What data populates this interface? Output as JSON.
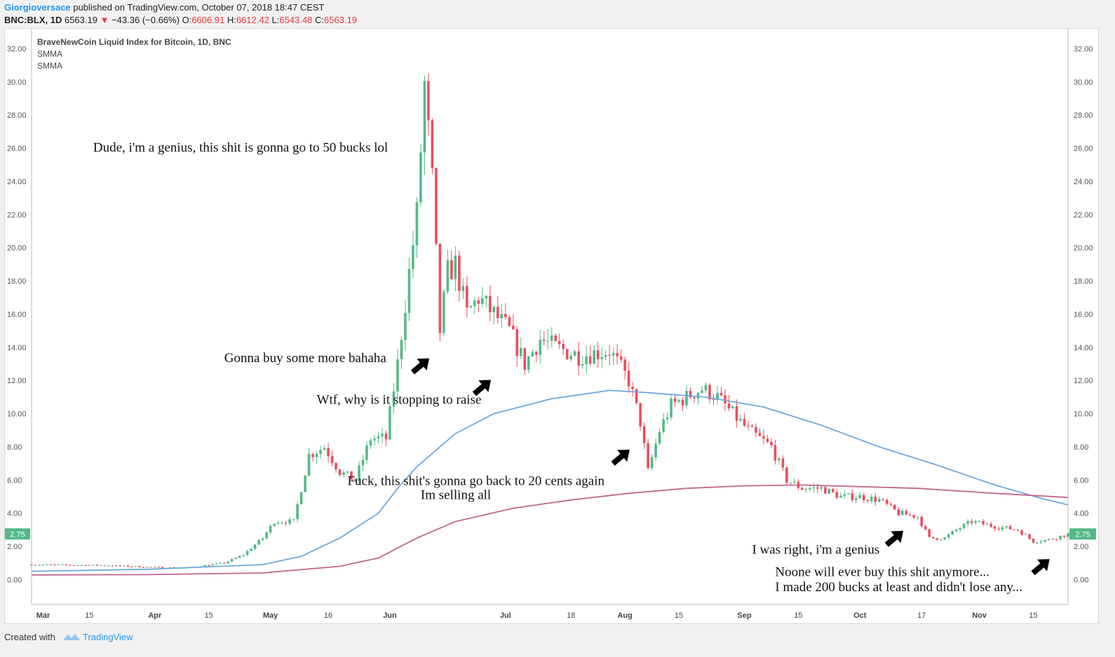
{
  "header": {
    "author": "Giorgioversace",
    "published": "published on TradingView.com, October 07, 2018 18:47 CEST",
    "symbol": "BNC:BLX, 1D",
    "last": "6563.19",
    "change": "−43.36 (−0.66%)",
    "o_label": "O:",
    "o": "6606.91",
    "h_label": "H:",
    "h": "6612.42",
    "l_label": "L:",
    "l": "6543.48",
    "c_label": "C:",
    "c": "6563.19"
  },
  "footer": {
    "created": "Created with",
    "brand": "TradingView"
  },
  "colors": {
    "up": "#53b987",
    "down": "#eb4d5c",
    "smma_fast": "#6fa8dc",
    "smma_slow": "#c2668e",
    "grid_text": "#555555"
  },
  "chart_data": {
    "type": "line",
    "legend": [
      "BraveNewCoin Liquid Index for Bitcoin, 1D, BNC",
      "SMMA",
      "SMMA"
    ],
    "ylim": [
      -1.5,
      33.2
    ],
    "yticks": [
      "32.00",
      "30.00",
      "28.00",
      "26.00",
      "24.00",
      "22.00",
      "20.00",
      "18.00",
      "16.00",
      "14.00",
      "12.00",
      "10.00",
      "8.00",
      "6.00",
      "4.00",
      "2.00",
      "0.00"
    ],
    "xticks": [
      {
        "label": "Mar",
        "day": 3
      },
      {
        "label": "15",
        "day": 15
      },
      {
        "label": "Apr",
        "day": 32
      },
      {
        "label": "15",
        "day": 46
      },
      {
        "label": "May",
        "day": 62
      },
      {
        "label": "16",
        "day": 77
      },
      {
        "label": "Jun",
        "day": 93
      },
      {
        "label": "Jul",
        "day": 123
      },
      {
        "label": "18",
        "day": 140
      },
      {
        "label": "Aug",
        "day": 154
      },
      {
        "label": "15",
        "day": 168
      },
      {
        "label": "Sep",
        "day": 185
      },
      {
        "label": "15",
        "day": 199
      },
      {
        "label": "Oct",
        "day": 215
      },
      {
        "label": "17",
        "day": 231
      },
      {
        "label": "Nov",
        "day": 246
      },
      {
        "label": "15",
        "day": 260
      }
    ],
    "day_range": [
      0,
      269
    ],
    "price_badge": "2.75",
    "price_key": [
      [
        0,
        0.9
      ],
      [
        20,
        0.85
      ],
      [
        30,
        0.75
      ],
      [
        40,
        0.7
      ],
      [
        50,
        1.0
      ],
      [
        55,
        1.5
      ],
      [
        60,
        2.5
      ],
      [
        63,
        3.5
      ],
      [
        68,
        3.5
      ],
      [
        72,
        7.5
      ],
      [
        76,
        8.0
      ],
      [
        80,
        6.5
      ],
      [
        84,
        6.0
      ],
      [
        88,
        8.5
      ],
      [
        92,
        8.5
      ],
      [
        95,
        13.0
      ],
      [
        98,
        18.5
      ],
      [
        100,
        22.0
      ],
      [
        102,
        29.8
      ],
      [
        104,
        24.0
      ],
      [
        106,
        15.0
      ],
      [
        108,
        18.5
      ],
      [
        110,
        19.0
      ],
      [
        113,
        16.0
      ],
      [
        116,
        17.0
      ],
      [
        120,
        16.0
      ],
      [
        124,
        15.0
      ],
      [
        128,
        13.0
      ],
      [
        132,
        14.5
      ],
      [
        136,
        14.0
      ],
      [
        142,
        13.5
      ],
      [
        150,
        13.8
      ],
      [
        155,
        12.0
      ],
      [
        158,
        9.5
      ],
      [
        160,
        6.5
      ],
      [
        163,
        9.0
      ],
      [
        166,
        10.5
      ],
      [
        170,
        11.0
      ],
      [
        174,
        11.5
      ],
      [
        178,
        11.0
      ],
      [
        182,
        10.0
      ],
      [
        186,
        9.0
      ],
      [
        192,
        8.0
      ],
      [
        196,
        6.0
      ],
      [
        200,
        5.5
      ],
      [
        205,
        5.5
      ],
      [
        210,
        5.0
      ],
      [
        215,
        5.0
      ],
      [
        220,
        4.8
      ],
      [
        225,
        4.0
      ],
      [
        230,
        3.8
      ],
      [
        233,
        2.5
      ],
      [
        237,
        2.5
      ],
      [
        240,
        3.0
      ],
      [
        244,
        3.5
      ],
      [
        250,
        3.2
      ],
      [
        256,
        3.0
      ],
      [
        260,
        2.3
      ],
      [
        264,
        2.4
      ],
      [
        269,
        2.75
      ]
    ],
    "smma_fast": [
      [
        0,
        0.5
      ],
      [
        30,
        0.62
      ],
      [
        60,
        0.9
      ],
      [
        70,
        1.4
      ],
      [
        80,
        2.5
      ],
      [
        90,
        4.0
      ],
      [
        95,
        5.5
      ],
      [
        100,
        6.8
      ],
      [
        110,
        8.8
      ],
      [
        120,
        10.0
      ],
      [
        135,
        10.9
      ],
      [
        150,
        11.4
      ],
      [
        158,
        11.3
      ],
      [
        175,
        11.0
      ],
      [
        190,
        10.4
      ],
      [
        205,
        9.3
      ],
      [
        220,
        8.0
      ],
      [
        235,
        6.9
      ],
      [
        250,
        5.7
      ],
      [
        262,
        4.9
      ],
      [
        269,
        4.5
      ]
    ],
    "smma_slow": [
      [
        0,
        0.28
      ],
      [
        30,
        0.3
      ],
      [
        60,
        0.4
      ],
      [
        80,
        0.8
      ],
      [
        90,
        1.3
      ],
      [
        100,
        2.5
      ],
      [
        110,
        3.5
      ],
      [
        125,
        4.3
      ],
      [
        140,
        4.8
      ],
      [
        155,
        5.2
      ],
      [
        170,
        5.5
      ],
      [
        185,
        5.65
      ],
      [
        200,
        5.7
      ],
      [
        215,
        5.6
      ],
      [
        230,
        5.5
      ],
      [
        250,
        5.2
      ],
      [
        269,
        4.95
      ]
    ],
    "annotations": [
      {
        "text": "Dude, i'm a genius, this shit is gonna go to 50 bucks lol",
        "day": 16,
        "value": 25.8
      },
      {
        "text": "Gonna buy some more bahaha",
        "day": 50,
        "value": 13.1
      },
      {
        "text": "Wtf, why is it stopping to raise",
        "day": 74,
        "value": 10.6
      },
      {
        "text": "Fuck, this shit's gonna go back to 20 cents again",
        "day": 82,
        "value": 5.7
      },
      {
        "text": "Im selling all",
        "day": 101,
        "value": 4.85
      },
      {
        "text": "I was right, i'm a genius",
        "day": 187,
        "value": 1.55
      },
      {
        "text": "Noone will ever buy this shit anymore...",
        "day": 193,
        "value": 0.2
      },
      {
        "text": "I made 200 bucks at least and didn't lose any...",
        "day": 193,
        "value": -0.7
      }
    ],
    "arrows": [
      {
        "day": 101,
        "value": 12.9
      },
      {
        "day": 117,
        "value": 11.6
      },
      {
        "day": 153,
        "value": 7.4
      },
      {
        "day": 224,
        "value": 2.5
      },
      {
        "day": 262,
        "value": 0.8
      }
    ]
  }
}
